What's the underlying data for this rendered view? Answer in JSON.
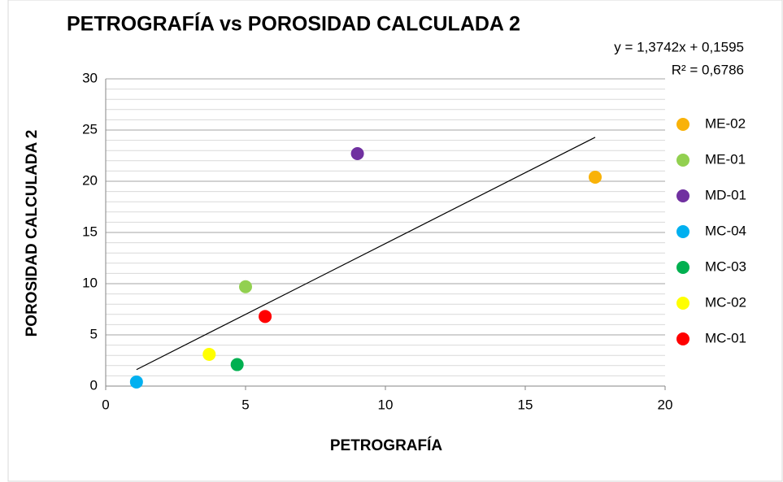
{
  "chart_data": {
    "type": "scatter",
    "title": "PETROGRAFÍA vs POROSIDAD CALCULADA 2",
    "x_label": "PETROGRAFÍA",
    "y_label": "POROSIDAD CALCULADA 2",
    "trendline": {
      "equation": "y = 1,3742x + 0,1595",
      "r2": "R² = 0,6786"
    },
    "series": [
      {
        "name": "ME-02",
        "color": "#f9b208",
        "x": [
          17.5
        ],
        "values": [
          20.4
        ]
      },
      {
        "name": "ME-01",
        "color": "#92d050",
        "x": [
          5.0
        ],
        "values": [
          9.7
        ]
      },
      {
        "name": "MD-01",
        "color": "#7030a0",
        "x": [
          9.0
        ],
        "values": [
          22.7
        ]
      },
      {
        "name": "MC-04",
        "color": "#00b0f0",
        "x": [
          1.1
        ],
        "values": [
          0.4
        ]
      },
      {
        "name": "MC-03",
        "color": "#00b050",
        "x": [
          4.7
        ],
        "values": [
          2.1
        ]
      },
      {
        "name": "MC-02",
        "color": "#ffff00",
        "x": [
          3.7
        ],
        "values": [
          3.1
        ]
      },
      {
        "name": "MC-01",
        "color": "#ff0000",
        "x": [
          5.7
        ],
        "values": [
          6.8
        ]
      }
    ],
    "xlim": [
      0,
      20
    ],
    "xticks": [
      0,
      5,
      10,
      15,
      20
    ],
    "ylim": [
      0,
      30
    ],
    "yticks": [
      0,
      5,
      10,
      15,
      20,
      25,
      30
    ],
    "grid": true,
    "minor_grid": true,
    "legend": "right"
  }
}
